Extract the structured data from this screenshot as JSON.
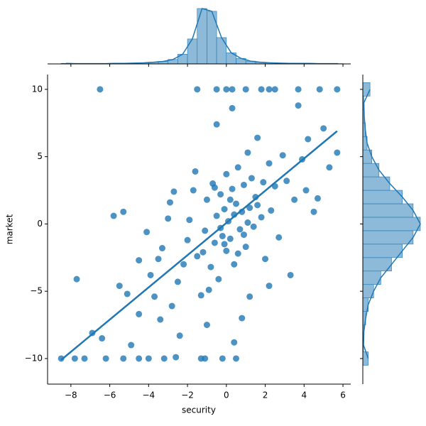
{
  "chart_data": {
    "type": "scatter",
    "x_label": "security",
    "y_label": "market",
    "color": "#1f77b4",
    "xlim": [
      -9.2,
      6.4
    ],
    "ylim": [
      -11.9,
      11.1
    ],
    "xticks": [
      {
        "value": -8,
        "label": "−8"
      },
      {
        "value": -6,
        "label": "−6"
      },
      {
        "value": -4,
        "label": "−4"
      },
      {
        "value": -2,
        "label": "−2"
      },
      0,
      2,
      4,
      6
    ],
    "yticks": [
      {
        "value": -10,
        "label": "−10"
      },
      {
        "value": -5,
        "label": "−5"
      },
      0,
      5,
      10
    ],
    "x": [
      -6.5,
      -1.5,
      -0.5,
      0,
      0.3,
      1,
      1.8,
      2.2,
      3.7,
      4.8,
      5.7,
      2.5,
      -8.5,
      -7.8,
      -7.3,
      -6.2,
      -5.3,
      -4.5,
      -4,
      -3.2,
      -1.3,
      -1.1,
      -0.2,
      0.5,
      -7.7,
      -5.8,
      -5.3,
      -4.5,
      -4.1,
      -4.5,
      -5.1,
      -6.4,
      -6.9,
      -3.9,
      -3.5,
      -3.3,
      -3,
      -2.9,
      -3.7,
      -3.4,
      -2.8,
      -2.5,
      -2.2,
      -2.0,
      -1.9,
      -1.7,
      -1.5,
      -1.3,
      -1.1,
      -1.0,
      -0.8,
      -0.7,
      -0.6,
      -0.5,
      -0.4,
      -0.3,
      -0.2,
      -0.1,
      0,
      0,
      0.1,
      0.2,
      0.3,
      0.4,
      0.5,
      0.6,
      0.7,
      0.8,
      0.9,
      1.0,
      1.1,
      1.2,
      1.3,
      1.4,
      1.5,
      1.6,
      1.8,
      1.9,
      2.0,
      2.2,
      2.3,
      2.5,
      2.7,
      2.9,
      3.1,
      3.3,
      3.5,
      3.7,
      3.9,
      4.1,
      4.2,
      4.5,
      4.7,
      5.0,
      5.3,
      5.7,
      0.3,
      -0.5,
      0.8,
      -1.0,
      -2.4,
      -4.9,
      -5.5,
      -2.6,
      0.4,
      1.2,
      2.2,
      -0.9,
      -1.6,
      -2.7,
      0.6,
      -0.3,
      0.2,
      -0.6,
      1.1,
      0.4,
      -0.1,
      0.9,
      -1.2,
      1.6
    ],
    "y": [
      10,
      10,
      10,
      10,
      10,
      10,
      10,
      10,
      10,
      10,
      10,
      10,
      -10,
      -10,
      -10,
      -10,
      -10,
      -10,
      -10,
      -10,
      -10,
      -10,
      -10,
      -10,
      -4.1,
      0.6,
      0.9,
      -2.7,
      -0.6,
      -6.7,
      -5.2,
      -8.5,
      -8.1,
      -3.8,
      -2.6,
      -1.8,
      0.4,
      1.6,
      -5.4,
      -7.1,
      -6.1,
      -4.3,
      -3.0,
      -1.2,
      0.3,
      2.5,
      -2.4,
      -5.3,
      -0.5,
      1.8,
      -3.2,
      3.0,
      -1.4,
      0.6,
      -4.1,
      2.2,
      -0.9,
      1.1,
      -2.0,
      3.7,
      0.2,
      -1.1,
      2.6,
      -3.0,
      1.5,
      4.2,
      -0.4,
      0.9,
      2.9,
      -1.7,
      5.3,
      1.2,
      3.4,
      -0.2,
      2.0,
      6.4,
      0.5,
      3.1,
      -2.6,
      4.5,
      1.0,
      2.8,
      -1.0,
      5.1,
      3.2,
      -3.8,
      1.8,
      8.8,
      4.8,
      2.5,
      6.3,
      0.9,
      1.9,
      7.1,
      4.2,
      5.3,
      8.6,
      7.4,
      -7.0,
      -7.5,
      -8.3,
      -9.0,
      -4.6,
      -9.9,
      -8.8,
      -5.4,
      -4.6,
      -4.9,
      3.9,
      2.4,
      -2.2,
      -0.3,
      1.8,
      2.7,
      0.1,
      0.7,
      -1.5,
      -0.8,
      -2.1,
      1.4
    ],
    "regression": {
      "x": [
        -8.5,
        5.7
      ],
      "y": [
        -10.1,
        6.9
      ]
    },
    "hist_color": "#8ebad9",
    "hist_x": {
      "bins": [
        -8.5,
        -8,
        -7.5,
        -7,
        -6.5,
        -6,
        -5.5,
        -5,
        -4.5,
        -4,
        -3.5,
        -3,
        -2.5,
        -2,
        -1.5,
        -1,
        -0.5,
        0,
        0.5,
        1,
        1.5,
        2,
        2.5,
        3,
        3.5,
        4,
        4.5,
        5,
        5.5,
        6
      ],
      "counts": [
        2,
        1,
        1,
        1,
        1,
        2,
        2,
        3,
        4,
        6,
        9,
        16,
        35,
        90,
        200,
        190,
        95,
        40,
        20,
        10,
        6,
        4,
        3,
        2,
        2,
        2,
        1,
        1,
        1
      ]
    },
    "hist_y": {
      "bins": [
        -10.5,
        -9.5,
        -8.5,
        -7.5,
        -6.5,
        -5.5,
        -4.5,
        -3.5,
        -2.5,
        -1.5,
        -0.5,
        0.5,
        1.5,
        2.5,
        3.5,
        4.5,
        5.5,
        6.5,
        7.5,
        8.5,
        9.5,
        10.5
      ],
      "counts": [
        15,
        2,
        3,
        8,
        15,
        30,
        50,
        80,
        110,
        140,
        160,
        140,
        110,
        75,
        45,
        25,
        12,
        7,
        4,
        3,
        20
      ]
    }
  }
}
